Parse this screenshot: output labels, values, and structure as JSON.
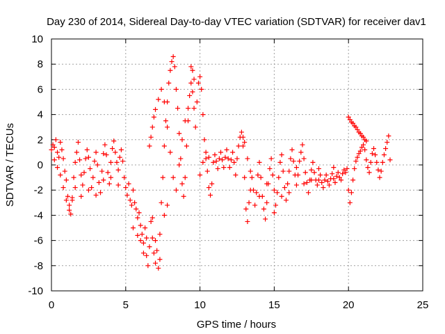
{
  "chart_data": {
    "type": "scatter",
    "title": "Day 230 of 2014, Sidereal Day-to-day VTEC variation (SDTVAR) for receiver dav1",
    "xlabel": "GPS time / hours",
    "ylabel": "SDTVAR / TECUs",
    "xlim": [
      0,
      25
    ],
    "ylim": [
      -10,
      10
    ],
    "x_ticks": [
      0,
      5,
      10,
      15,
      20,
      25
    ],
    "y_ticks": [
      -10,
      -8,
      -6,
      -4,
      -2,
      0,
      2,
      4,
      6,
      8,
      10
    ],
    "grid": true,
    "marker": "+",
    "series_color": "#ff0000",
    "series": [
      {
        "name": "SDTVAR",
        "points": [
          [
            0.0,
            1.2
          ],
          [
            0.1,
            1.6
          ],
          [
            0.2,
            1.4
          ],
          [
            0.3,
            2.0
          ],
          [
            0.4,
            1.0
          ],
          [
            0.5,
            0.6
          ],
          [
            0.6,
            1.8
          ],
          [
            0.7,
            1.2
          ],
          [
            0.8,
            0.5
          ],
          [
            0.9,
            -0.5
          ],
          [
            1.0,
            -1.2
          ],
          [
            1.1,
            -2.5
          ],
          [
            1.2,
            -3.2
          ],
          [
            1.3,
            -3.9
          ],
          [
            1.4,
            -2.6
          ],
          [
            1.5,
            -1.0
          ],
          [
            1.6,
            0.2
          ],
          [
            1.7,
            1.0
          ],
          [
            1.8,
            1.8
          ],
          [
            1.9,
            0.4
          ],
          [
            2.0,
            -0.8
          ],
          [
            2.1,
            -1.6
          ],
          [
            2.2,
            -0.6
          ],
          [
            2.3,
            0.5
          ],
          [
            2.4,
            1.2
          ],
          [
            2.5,
            0.6
          ],
          [
            2.6,
            -0.3
          ],
          [
            2.7,
            -1.8
          ],
          [
            2.8,
            -1.0
          ],
          [
            2.9,
            0.3
          ],
          [
            3.0,
            1.0
          ],
          [
            3.1,
            0.0
          ],
          [
            3.2,
            -1.4
          ],
          [
            3.3,
            -2.2
          ],
          [
            3.4,
            -0.5
          ],
          [
            3.5,
            0.9
          ],
          [
            3.6,
            1.6
          ],
          [
            3.7,
            0.8
          ],
          [
            3.8,
            -0.6
          ],
          [
            3.9,
            -1.5
          ],
          [
            4.0,
            0.2
          ],
          [
            4.1,
            1.3
          ],
          [
            4.2,
            1.9
          ],
          [
            4.3,
            1.0
          ],
          [
            4.4,
            0.2
          ],
          [
            4.5,
            -0.4
          ],
          [
            4.6,
            0.6
          ],
          [
            4.7,
            1.2
          ],
          [
            4.8,
            0.3
          ],
          [
            4.9,
            -1.0
          ],
          [
            5.0,
            -1.8
          ],
          [
            5.1,
            -2.4
          ],
          [
            5.2,
            -1.5
          ],
          [
            5.3,
            -2.8
          ],
          [
            5.4,
            -3.2
          ],
          [
            5.5,
            -2.0
          ],
          [
            5.6,
            -3.0
          ],
          [
            5.7,
            -3.5
          ],
          [
            5.8,
            -4.2
          ],
          [
            5.9,
            -3.8
          ],
          [
            6.0,
            -4.8
          ],
          [
            6.1,
            -5.5
          ],
          [
            6.2,
            -6.2
          ],
          [
            6.3,
            -5.0
          ],
          [
            6.4,
            -7.2
          ],
          [
            6.5,
            -8.0
          ],
          [
            6.6,
            -6.5
          ],
          [
            6.7,
            -4.5
          ],
          [
            6.8,
            -5.8
          ],
          [
            6.9,
            -7.0
          ],
          [
            7.0,
            -7.8
          ],
          [
            7.1,
            -6.8
          ],
          [
            7.2,
            -8.2
          ],
          [
            7.3,
            -5.5
          ],
          [
            7.4,
            -3.0
          ],
          [
            7.5,
            -1.0
          ],
          [
            7.6,
            1.5
          ],
          [
            7.7,
            3.5
          ],
          [
            7.8,
            5.0
          ],
          [
            7.9,
            6.5
          ],
          [
            8.0,
            7.5
          ],
          [
            8.1,
            8.2
          ],
          [
            8.2,
            8.6
          ],
          [
            8.3,
            7.8
          ],
          [
            8.4,
            6.0
          ],
          [
            8.5,
            4.5
          ],
          [
            8.6,
            2.5
          ],
          [
            8.7,
            0.5
          ],
          [
            8.8,
            -1.5
          ],
          [
            8.9,
            -2.5
          ],
          [
            9.0,
            -1.0
          ],
          [
            9.1,
            1.5
          ],
          [
            9.2,
            3.5
          ],
          [
            9.3,
            5.5
          ],
          [
            9.4,
            6.5
          ],
          [
            9.5,
            5.8
          ],
          [
            9.6,
            4.5
          ],
          [
            9.7,
            3.0
          ],
          [
            9.8,
            5.0
          ],
          [
            9.9,
            6.5
          ],
          [
            10.0,
            7.0
          ],
          [
            10.1,
            6.0
          ],
          [
            10.2,
            4.0
          ],
          [
            10.3,
            2.0
          ],
          [
            10.4,
            0.5
          ],
          [
            10.5,
            -0.5
          ],
          [
            10.6,
            -1.8
          ],
          [
            10.7,
            -2.4
          ],
          [
            10.8,
            -1.5
          ],
          [
            10.9,
            0.2
          ],
          [
            11.0,
            0.8
          ],
          [
            11.1,
            0.3
          ],
          [
            11.2,
            -0.3
          ],
          [
            11.3,
            0.5
          ],
          [
            11.4,
            1.0
          ],
          [
            11.5,
            0.4
          ],
          [
            11.6,
            -0.2
          ],
          [
            11.7,
            0.6
          ],
          [
            11.8,
            1.2
          ],
          [
            11.9,
            0.5
          ],
          [
            12.0,
            -0.2
          ],
          [
            12.1,
            0.4
          ],
          [
            12.2,
            1.0
          ],
          [
            12.3,
            0.2
          ],
          [
            12.4,
            -0.8
          ],
          [
            12.5,
            0.5
          ],
          [
            12.6,
            1.5
          ],
          [
            12.7,
            2.2
          ],
          [
            12.8,
            2.6
          ],
          [
            12.9,
            1.5
          ],
          [
            13.0,
            -1.0
          ],
          [
            13.1,
            -3.5
          ],
          [
            13.2,
            -4.5
          ],
          [
            13.3,
            -3.0
          ],
          [
            13.4,
            -2.0
          ],
          [
            13.5,
            -1.0
          ],
          [
            13.6,
            -2.0
          ],
          [
            13.7,
            -3.2
          ],
          [
            13.8,
            -2.2
          ],
          [
            13.9,
            -0.8
          ],
          [
            14.0,
            0.2
          ],
          [
            14.1,
            -1.0
          ],
          [
            14.2,
            -2.5
          ],
          [
            14.3,
            -3.5
          ],
          [
            14.4,
            -4.3
          ],
          [
            14.5,
            -3.0
          ],
          [
            14.6,
            -1.5
          ],
          [
            14.7,
            -0.3
          ],
          [
            14.8,
            0.5
          ],
          [
            14.9,
            -0.8
          ],
          [
            15.0,
            -2.0
          ],
          [
            15.1,
            -3.2
          ],
          [
            15.2,
            -2.2
          ],
          [
            15.3,
            -1.0
          ],
          [
            15.4,
            0.2
          ],
          [
            15.5,
            0.8
          ],
          [
            15.6,
            -0.5
          ],
          [
            15.7,
            -1.8
          ],
          [
            15.8,
            -2.8
          ],
          [
            15.9,
            -1.5
          ],
          [
            16.0,
            -0.5
          ],
          [
            16.1,
            0.5
          ],
          [
            16.2,
            1.2
          ],
          [
            16.3,
            0.3
          ],
          [
            16.4,
            -0.8
          ],
          [
            16.5,
            -1.6
          ],
          [
            16.6,
            -0.8
          ],
          [
            16.7,
            0.3
          ],
          [
            16.8,
            1.0
          ],
          [
            16.9,
            1.6
          ],
          [
            17.0,
            0.5
          ],
          [
            17.1,
            -0.6
          ],
          [
            17.2,
            -1.4
          ],
          [
            17.3,
            -2.2
          ],
          [
            17.4,
            -1.2
          ],
          [
            17.5,
            -0.4
          ],
          [
            17.6,
            0.2
          ],
          [
            17.7,
            -0.6
          ],
          [
            17.8,
            -1.2
          ],
          [
            17.9,
            -1.6
          ],
          [
            18.0,
            -1.2
          ],
          [
            18.1,
            -0.8
          ],
          [
            18.2,
            -1.4
          ],
          [
            18.3,
            -1.8
          ],
          [
            18.4,
            -1.2
          ],
          [
            18.5,
            -0.8
          ],
          [
            18.6,
            -1.3
          ],
          [
            18.7,
            -1.6
          ],
          [
            18.8,
            -1.1
          ],
          [
            18.9,
            -0.7
          ],
          [
            19.0,
            -1.1
          ],
          [
            19.1,
            -1.4
          ],
          [
            19.2,
            -0.9
          ],
          [
            19.3,
            -0.6
          ],
          [
            19.4,
            -1.0
          ],
          [
            19.5,
            -1.2
          ],
          [
            19.6,
            -0.7
          ],
          [
            19.7,
            -0.4
          ],
          [
            19.8,
            -0.6
          ],
          [
            19.9,
            -0.3
          ],
          [
            20.0,
            -2.0
          ],
          [
            20.1,
            -3.0
          ],
          [
            20.2,
            -2.2
          ],
          [
            20.3,
            -1.2
          ],
          [
            20.4,
            -0.3
          ],
          [
            20.5,
            0.3
          ],
          [
            20.6,
            0.6
          ],
          [
            20.7,
            0.9
          ],
          [
            20.8,
            1.1
          ],
          [
            20.9,
            1.4
          ],
          [
            21.0,
            1.6
          ],
          [
            21.1,
            1.2
          ],
          [
            21.2,
            0.4
          ],
          [
            21.3,
            -0.2
          ],
          [
            21.4,
            -0.6
          ],
          [
            21.5,
            0.2
          ],
          [
            21.6,
            0.9
          ],
          [
            21.7,
            1.3
          ],
          [
            21.8,
            0.8
          ],
          [
            21.9,
            0.2
          ],
          [
            22.0,
            -0.4
          ],
          [
            22.1,
            -1.0
          ],
          [
            22.2,
            -0.5
          ],
          [
            22.3,
            0.2
          ],
          [
            22.4,
            0.8
          ],
          [
            22.5,
            1.3
          ],
          [
            22.6,
            1.8
          ],
          [
            22.7,
            2.3
          ],
          [
            22.8,
            0.4
          ],
          [
            20.0,
            3.8
          ],
          [
            20.1,
            3.6
          ],
          [
            20.2,
            3.4
          ],
          [
            20.3,
            3.3
          ],
          [
            20.4,
            3.1
          ],
          [
            20.5,
            3.0
          ],
          [
            20.6,
            2.8
          ],
          [
            20.7,
            2.6
          ],
          [
            20.8,
            2.5
          ],
          [
            20.9,
            2.3
          ],
          [
            21.0,
            2.2
          ],
          [
            21.1,
            2.0
          ],
          [
            21.2,
            1.9
          ],
          [
            6.6,
            1.5
          ],
          [
            6.7,
            2.2
          ],
          [
            6.8,
            3.0
          ],
          [
            6.9,
            3.8
          ],
          [
            7.0,
            4.4
          ],
          [
            7.2,
            5.2
          ],
          [
            7.4,
            6.0
          ],
          [
            7.6,
            5.0
          ],
          [
            7.8,
            3.0
          ],
          [
            8.0,
            1.0
          ],
          [
            8.2,
            -1.0
          ],
          [
            8.4,
            -2.0
          ],
          [
            8.6,
            0.0
          ],
          [
            8.8,
            2.0
          ],
          [
            9.0,
            3.5
          ],
          [
            9.2,
            4.5
          ],
          [
            9.4,
            7.8
          ],
          [
            9.5,
            7.5
          ],
          [
            9.6,
            6.8
          ],
          [
            0.2,
            0.4
          ],
          [
            0.4,
            -0.2
          ],
          [
            0.6,
            -0.8
          ],
          [
            0.8,
            -1.8
          ],
          [
            1.0,
            -2.8
          ],
          [
            1.2,
            -3.6
          ],
          [
            1.4,
            -2.8
          ],
          [
            1.6,
            -1.8
          ],
          [
            2.0,
            -2.5
          ],
          [
            2.5,
            -2.0
          ],
          [
            3.0,
            -2.4
          ],
          [
            3.5,
            -1.2
          ],
          [
            4.0,
            -1.0
          ],
          [
            4.5,
            -1.6
          ],
          [
            5.5,
            -5.0
          ],
          [
            5.8,
            -5.6
          ],
          [
            6.0,
            -6.0
          ],
          [
            6.2,
            -7.0
          ],
          [
            6.4,
            -5.8
          ],
          [
            6.8,
            -4.2
          ],
          [
            7.0,
            -6.0
          ],
          [
            7.3,
            -7.5
          ],
          [
            7.6,
            -4.0
          ],
          [
            7.8,
            -3.2
          ],
          [
            10.0,
            -0.8
          ],
          [
            10.2,
            0.2
          ],
          [
            10.4,
            1.0
          ],
          [
            10.6,
            0.6
          ],
          [
            12.9,
            2.2
          ],
          [
            13.0,
            1.8
          ],
          [
            13.2,
            0.5
          ],
          [
            13.4,
            -0.5
          ],
          [
            14.0,
            -2.5
          ],
          [
            14.5,
            -1.5
          ],
          [
            15.0,
            -3.8
          ],
          [
            15.5,
            -2.5
          ],
          [
            16.0,
            -2.2
          ],
          [
            16.5,
            -0.2
          ],
          [
            17.0,
            -1.5
          ],
          [
            17.5,
            -1.2
          ],
          [
            18.0,
            -0.3
          ],
          [
            19.0,
            -0.2
          ]
        ]
      }
    ]
  }
}
